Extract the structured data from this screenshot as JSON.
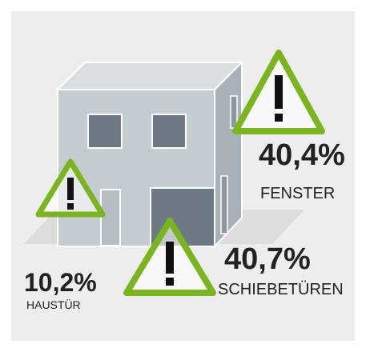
{
  "items": [
    {
      "value": "40,4%",
      "label": "FENSTER"
    },
    {
      "value": "40,7%",
      "label": "SCHIEBETÜREN"
    },
    {
      "value": "10,2%",
      "label": "HAUSTÜR"
    }
  ]
}
